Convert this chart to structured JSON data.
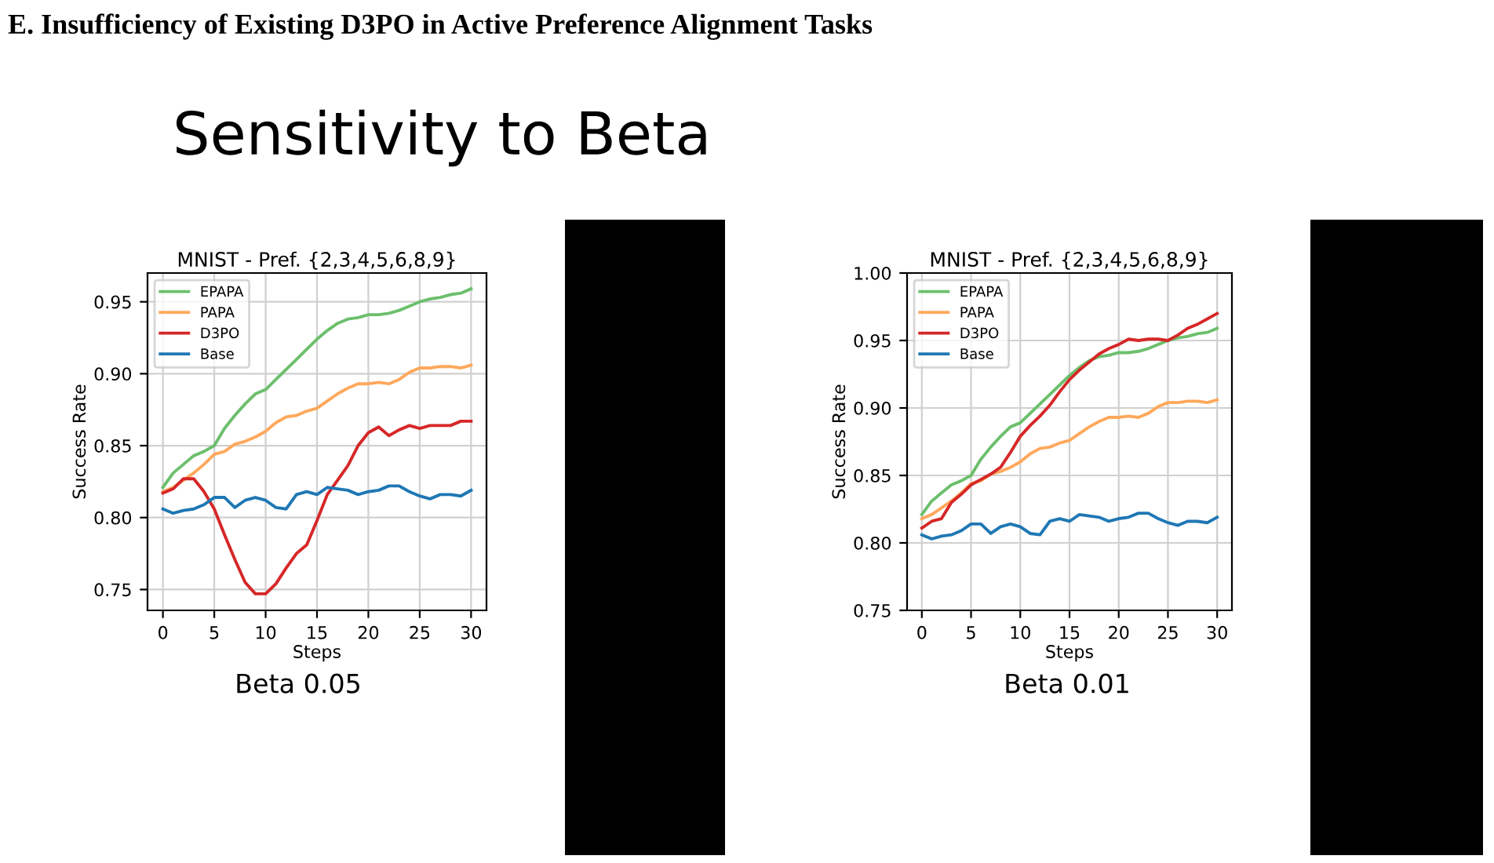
{
  "chart_data": [
    {
      "type": "line",
      "title": "MNIST - Pref. {2,3,4,5,6,8,9}",
      "xlabel": "Steps",
      "ylabel": "Success Rate",
      "annotations": [
        "E. Insufficiency of Existing D3PO in Active Preference Alignment Tasks",
        "Sensitivity to Beta",
        "Beta 0.05"
      ],
      "x": [
        0,
        1,
        2,
        3,
        4,
        5,
        6,
        7,
        8,
        9,
        10,
        11,
        12,
        13,
        14,
        15,
        16,
        17,
        18,
        19,
        20,
        21,
        22,
        23,
        24,
        25,
        26,
        27,
        28,
        29,
        30
      ],
      "series": [
        {
          "name": "EPAPA",
          "color": "#6cbf6c",
          "values": [
            0.821,
            0.831,
            0.837,
            0.843,
            0.846,
            0.85,
            0.862,
            0.871,
            0.879,
            0.886,
            0.889,
            0.896,
            0.903,
            0.91,
            0.917,
            0.924,
            0.93,
            0.935,
            0.938,
            0.939,
            0.941,
            0.941,
            0.942,
            0.944,
            0.947,
            0.95,
            0.952,
            0.953,
            0.955,
            0.956,
            0.959
          ]
        },
        {
          "name": "PAPA",
          "color": "#ffa85c",
          "values": [
            0.818,
            0.821,
            0.826,
            0.831,
            0.837,
            0.844,
            0.846,
            0.851,
            0.853,
            0.856,
            0.86,
            0.866,
            0.87,
            0.871,
            0.874,
            0.876,
            0.881,
            0.886,
            0.89,
            0.893,
            0.893,
            0.894,
            0.893,
            0.896,
            0.901,
            0.904,
            0.904,
            0.905,
            0.905,
            0.904,
            0.906
          ]
        },
        {
          "name": "D3PO",
          "color": "#d62728",
          "values": [
            0.817,
            0.82,
            0.827,
            0.827,
            0.818,
            0.806,
            0.788,
            0.771,
            0.755,
            0.747,
            0.747,
            0.754,
            0.765,
            0.775,
            0.781,
            0.798,
            0.816,
            0.826,
            0.836,
            0.85,
            0.859,
            0.863,
            0.857,
            0.861,
            0.864,
            0.862,
            0.864,
            0.864,
            0.864,
            0.867,
            0.867
          ]
        },
        {
          "name": "Base",
          "color": "#1f77b4",
          "values": [
            0.806,
            0.803,
            0.805,
            0.806,
            0.809,
            0.814,
            0.814,
            0.807,
            0.812,
            0.814,
            0.812,
            0.807,
            0.806,
            0.816,
            0.818,
            0.816,
            0.821,
            0.82,
            0.819,
            0.816,
            0.818,
            0.819,
            0.822,
            0.822,
            0.818,
            0.815,
            0.813,
            0.816,
            0.816,
            0.815,
            0.819
          ]
        }
      ],
      "xlim": [
        -1.5,
        31.5
      ],
      "xticks": [
        0,
        5,
        10,
        15,
        20,
        25,
        30
      ],
      "ylim": [
        0.7355,
        0.97
      ],
      "yticks": [
        {
          "value": 0.75,
          "label": "0.75"
        },
        {
          "value": 0.8,
          "label": "0.80"
        },
        {
          "value": 0.85,
          "label": "0.85"
        },
        {
          "value": 0.9,
          "label": "0.90"
        },
        {
          "value": 0.95,
          "label": "0.95"
        }
      ],
      "grid": true,
      "legend": "top left",
      "marker": "none",
      "line_style": "solid"
    },
    {
      "type": "line",
      "title": "MNIST - Pref. {2,3,4,5,6,8,9}",
      "xlabel": "Steps",
      "ylabel": "Success Rate",
      "annotations": [
        "Beta 0.01"
      ],
      "x": [
        0,
        1,
        2,
        3,
        4,
        5,
        6,
        7,
        8,
        9,
        10,
        11,
        12,
        13,
        14,
        15,
        16,
        17,
        18,
        19,
        20,
        21,
        22,
        23,
        24,
        25,
        26,
        27,
        28,
        29,
        30
      ],
      "series": [
        {
          "name": "EPAPA",
          "color": "#6cbf6c",
          "values": [
            0.821,
            0.831,
            0.837,
            0.843,
            0.846,
            0.85,
            0.862,
            0.871,
            0.879,
            0.886,
            0.889,
            0.896,
            0.903,
            0.91,
            0.917,
            0.924,
            0.93,
            0.935,
            0.938,
            0.939,
            0.941,
            0.941,
            0.942,
            0.944,
            0.947,
            0.95,
            0.952,
            0.953,
            0.955,
            0.956,
            0.959
          ]
        },
        {
          "name": "PAPA",
          "color": "#ffa85c",
          "values": [
            0.818,
            0.821,
            0.826,
            0.831,
            0.837,
            0.844,
            0.846,
            0.851,
            0.853,
            0.856,
            0.86,
            0.866,
            0.87,
            0.871,
            0.874,
            0.876,
            0.881,
            0.886,
            0.89,
            0.893,
            0.893,
            0.894,
            0.893,
            0.896,
            0.901,
            0.904,
            0.904,
            0.905,
            0.905,
            0.904,
            0.906
          ]
        },
        {
          "name": "D3PO",
          "color": "#d62728",
          "values": [
            0.811,
            0.816,
            0.818,
            0.83,
            0.836,
            0.843,
            0.847,
            0.851,
            0.856,
            0.867,
            0.879,
            0.887,
            0.894,
            0.902,
            0.912,
            0.921,
            0.928,
            0.934,
            0.94,
            0.944,
            0.947,
            0.951,
            0.95,
            0.951,
            0.951,
            0.95,
            0.954,
            0.959,
            0.962,
            0.966,
            0.97
          ]
        },
        {
          "name": "Base",
          "color": "#1f77b4",
          "values": [
            0.806,
            0.803,
            0.805,
            0.806,
            0.809,
            0.814,
            0.814,
            0.807,
            0.812,
            0.814,
            0.812,
            0.807,
            0.806,
            0.816,
            0.818,
            0.816,
            0.821,
            0.82,
            0.819,
            0.816,
            0.818,
            0.819,
            0.822,
            0.822,
            0.818,
            0.815,
            0.813,
            0.816,
            0.816,
            0.815,
            0.819
          ]
        }
      ],
      "xlim": [
        -1.5,
        31.5
      ],
      "xticks": [
        0,
        5,
        10,
        15,
        20,
        25,
        30
      ],
      "ylim": [
        0.75,
        1.0
      ],
      "yticks": [
        {
          "value": 0.75,
          "label": "0.75"
        },
        {
          "value": 0.8,
          "label": "0.80"
        },
        {
          "value": 0.85,
          "label": "0.85"
        },
        {
          "value": 0.9,
          "label": "0.90"
        },
        {
          "value": 0.95,
          "label": "0.95"
        },
        {
          "value": 1.0,
          "label": "1.00"
        }
      ],
      "grid": true,
      "legend": "top left",
      "marker": "none",
      "line_style": "solid"
    }
  ]
}
